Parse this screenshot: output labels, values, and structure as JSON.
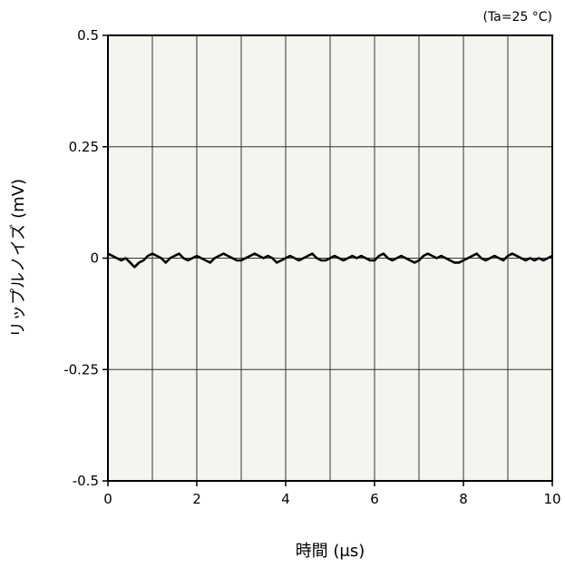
{
  "chart_data": {
    "type": "line",
    "condition_note": "(Ta=25 °C)",
    "xlabel": "時間 (μs)",
    "ylabel": "リップルノイズ (mV)",
    "xlim": [
      0,
      10
    ],
    "ylim": [
      -0.5,
      0.5
    ],
    "x_ticks": [
      0,
      2,
      4,
      6,
      8,
      10
    ],
    "x_tick_labels": [
      "0",
      "2",
      "4",
      "6",
      "8",
      "10"
    ],
    "y_ticks": [
      0.5,
      0.25,
      0,
      -0.25,
      -0.5
    ],
    "y_tick_labels": [
      "0.5",
      "0.25",
      "0",
      "-0.25",
      "-0.5"
    ],
    "x_gridlines": [
      1,
      2,
      3,
      4,
      5,
      6,
      7,
      8,
      9
    ],
    "y_gridlines": [
      0.25,
      0,
      -0.25
    ],
    "grid": true,
    "plot_background": "#f5f4ee",
    "line_color": "#000000",
    "series": [
      {
        "x": [
          0,
          0.1,
          0.2,
          0.3,
          0.4,
          0.5,
          0.6,
          0.7,
          0.8,
          0.9,
          1.0,
          1.1,
          1.2,
          1.3,
          1.4,
          1.5,
          1.6,
          1.7,
          1.8,
          1.9,
          2.0,
          2.1,
          2.2,
          2.3,
          2.4,
          2.5,
          2.6,
          2.7,
          2.8,
          2.9,
          3.0,
          3.1,
          3.2,
          3.3,
          3.4,
          3.5,
          3.6,
          3.7,
          3.8,
          3.9,
          4.0,
          4.1,
          4.2,
          4.3,
          4.4,
          4.5,
          4.6,
          4.7,
          4.8,
          4.9,
          5.0,
          5.1,
          5.2,
          5.3,
          5.4,
          5.5,
          5.6,
          5.7,
          5.8,
          5.9,
          6.0,
          6.1,
          6.2,
          6.3,
          6.4,
          6.5,
          6.6,
          6.7,
          6.8,
          6.9,
          7.0,
          7.1,
          7.2,
          7.3,
          7.4,
          7.5,
          7.6,
          7.7,
          7.8,
          7.9,
          8.0,
          8.1,
          8.2,
          8.3,
          8.4,
          8.5,
          8.6,
          8.7,
          8.8,
          8.9,
          9.0,
          9.1,
          9.2,
          9.3,
          9.4,
          9.5,
          9.6,
          9.7,
          9.8,
          9.9,
          10.0
        ],
        "y": [
          0.01,
          0.005,
          0.0,
          -0.005,
          0.0,
          -0.01,
          -0.02,
          -0.01,
          -0.005,
          0.005,
          0.01,
          0.005,
          0.0,
          -0.01,
          0.0,
          0.005,
          0.01,
          0.0,
          -0.005,
          0.0,
          0.005,
          0.0,
          -0.005,
          -0.01,
          0.0,
          0.005,
          0.01,
          0.005,
          0.0,
          -0.005,
          -0.005,
          0.0,
          0.005,
          0.01,
          0.005,
          0.0,
          0.005,
          0.0,
          -0.01,
          -0.005,
          0.0,
          0.005,
          0.0,
          -0.005,
          0.0,
          0.005,
          0.01,
          0.0,
          -0.005,
          -0.005,
          0.0,
          0.005,
          0.0,
          -0.005,
          0.0,
          0.005,
          0.0,
          0.005,
          0.0,
          -0.005,
          -0.005,
          0.005,
          0.01,
          0.0,
          -0.005,
          0.0,
          0.005,
          0.0,
          -0.005,
          -0.01,
          -0.005,
          0.005,
          0.01,
          0.005,
          0.0,
          0.005,
          0.0,
          -0.005,
          -0.01,
          -0.01,
          -0.005,
          0.0,
          0.005,
          0.01,
          0.0,
          -0.005,
          0.0,
          0.005,
          0.0,
          -0.005,
          0.005,
          0.01,
          0.005,
          0.0,
          -0.005,
          0.0,
          -0.005,
          0.0,
          -0.005,
          0.0,
          0.005
        ]
      }
    ]
  }
}
